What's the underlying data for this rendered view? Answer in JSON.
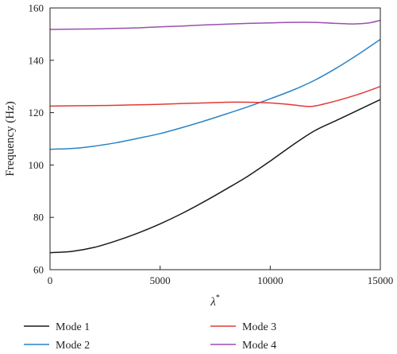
{
  "chart_data": {
    "type": "line",
    "title": "",
    "xlabel": "λ",
    "xlabel_superscript": "*",
    "ylabel": "Frequency (Hz)",
    "xlim": [
      0,
      15000
    ],
    "ylim": [
      60,
      160
    ],
    "xticks": [
      0,
      5000,
      10000,
      15000
    ],
    "yticks": [
      60,
      80,
      100,
      120,
      140,
      160
    ],
    "grid": false,
    "legend_position": "bottom",
    "series": [
      {
        "name": "Mode 1",
        "color": "#1a1a1a",
        "x": [
          0,
          1000,
          2000,
          3000,
          4000,
          5000,
          6000,
          7000,
          8000,
          9000,
          10000,
          11000,
          12000,
          13000,
          14000,
          15000
        ],
        "values": [
          66.5,
          67.0,
          68.5,
          71.0,
          74.0,
          77.5,
          81.5,
          86.0,
          90.8,
          95.8,
          101.5,
          107.5,
          113.0,
          117.0,
          121.0,
          125.0
        ]
      },
      {
        "name": "Mode 2",
        "color": "#2a84c6",
        "x": [
          0,
          1000,
          2000,
          3000,
          4000,
          5000,
          6000,
          7000,
          8000,
          9000,
          10000,
          11000,
          12000,
          13000,
          14000,
          15000
        ],
        "values": [
          106.0,
          106.3,
          107.2,
          108.5,
          110.2,
          112.0,
          114.3,
          116.8,
          119.5,
          122.3,
          125.3,
          128.5,
          132.3,
          137.0,
          142.3,
          148.0
        ]
      },
      {
        "name": "Mode 3",
        "color": "#e23a36",
        "x": [
          0,
          1000,
          2000,
          3000,
          4000,
          5000,
          6000,
          7000,
          8000,
          9000,
          10000,
          11000,
          11500,
          12000,
          13000,
          14000,
          15000
        ],
        "values": [
          122.5,
          122.6,
          122.7,
          122.8,
          123.0,
          123.2,
          123.5,
          123.7,
          124.0,
          124.0,
          123.7,
          123.0,
          122.5,
          122.5,
          124.5,
          127.0,
          130.0
        ]
      },
      {
        "name": "Mode 4",
        "color": "#9a4fb0",
        "x": [
          0,
          1000,
          2000,
          3000,
          4000,
          5000,
          6000,
          7000,
          8000,
          9000,
          10000,
          11000,
          12000,
          13000,
          13800,
          14500,
          15000
        ],
        "values": [
          151.8,
          151.9,
          152.0,
          152.2,
          152.4,
          152.8,
          153.1,
          153.5,
          153.8,
          154.1,
          154.3,
          154.5,
          154.5,
          154.1,
          153.9,
          154.3,
          155.3
        ]
      }
    ]
  }
}
